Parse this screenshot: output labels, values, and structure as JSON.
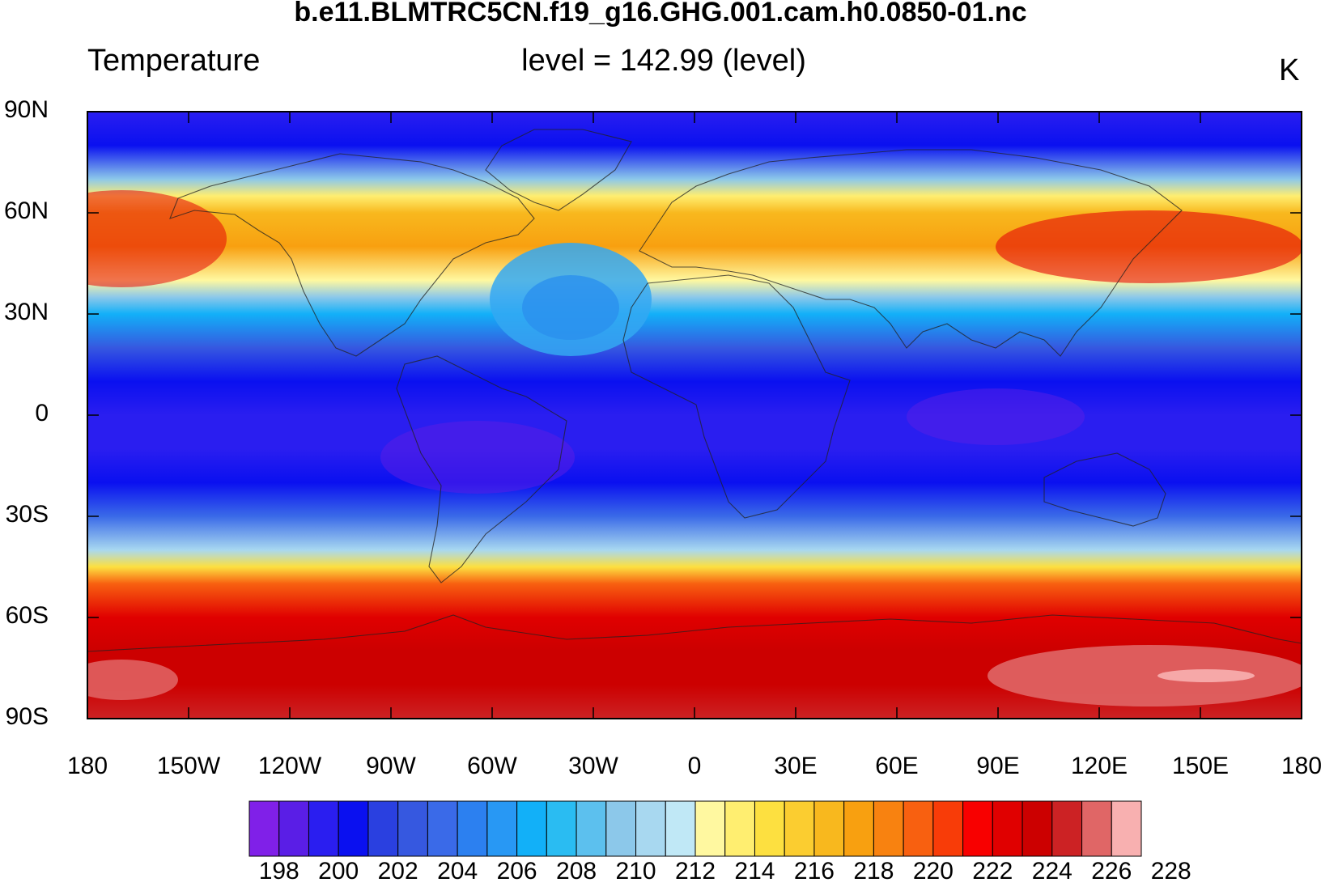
{
  "header": {
    "file_title": "b.e11.BLMTRC5CN.f19_g16.GHG.001.cam.h0.0850-01.nc",
    "variable": "Temperature",
    "level_text": "level = 142.99 (level)",
    "units": "K"
  },
  "map": {
    "projection": "cylindrical-equidistant",
    "lon_range": [
      -180,
      180
    ],
    "lat_range": [
      -90,
      90
    ],
    "lat_ticks": [
      {
        "value": 90,
        "label": "90N"
      },
      {
        "value": 60,
        "label": "60N"
      },
      {
        "value": 30,
        "label": "30N"
      },
      {
        "value": 0,
        "label": "0"
      },
      {
        "value": -30,
        "label": "30S"
      },
      {
        "value": -60,
        "label": "60S"
      },
      {
        "value": -90,
        "label": "90S"
      }
    ],
    "lon_ticks": [
      {
        "value": -180,
        "label": "180"
      },
      {
        "value": -150,
        "label": "150W"
      },
      {
        "value": -120,
        "label": "120W"
      },
      {
        "value": -90,
        "label": "90W"
      },
      {
        "value": -60,
        "label": "60W"
      },
      {
        "value": -30,
        "label": "30W"
      },
      {
        "value": 0,
        "label": "0"
      },
      {
        "value": 30,
        "label": "30E"
      },
      {
        "value": 60,
        "label": "60E"
      },
      {
        "value": 90,
        "label": "90E"
      },
      {
        "value": 120,
        "label": "120E"
      },
      {
        "value": 150,
        "label": "150E"
      },
      {
        "value": 180,
        "label": "180"
      }
    ]
  },
  "colorbar": {
    "levels": [
      198,
      200,
      202,
      204,
      206,
      208,
      210,
      212,
      214,
      216,
      218,
      220,
      222,
      224,
      226,
      228
    ],
    "labels": [
      "198",
      "200",
      "202",
      "204",
      "206",
      "208",
      "210",
      "212",
      "214",
      "216",
      "218",
      "220",
      "222",
      "224",
      "226",
      "228"
    ],
    "colors": [
      "#8020e8",
      "#5a1ee6",
      "#2a1ef0",
      "#0a10f0",
      "#2a40e0",
      "#3658e0",
      "#3a6ae8",
      "#2c80f0",
      "#2898f4",
      "#12b0f8",
      "#2abcf2",
      "#5cc0ee",
      "#8cc8ea",
      "#a8d8f0",
      "#c0e8f6",
      "#fff8a0",
      "#ffee70",
      "#fde040",
      "#fbcd30",
      "#f8b81e",
      "#f8a010",
      "#f88210",
      "#f86010",
      "#f83c08",
      "#f80000",
      "#e00000",
      "#cc0000",
      "#cc2224",
      "#e06666",
      "#f8b0b0"
    ]
  },
  "chart_data": {
    "type": "heatmap",
    "title": "b.e11.BLMTRC5CN.f19_g16.GHG.001.cam.h0.0850-01.nc",
    "variable": "Temperature",
    "level": "142.99",
    "units": "K",
    "zonal_profile": {
      "lat": [
        90,
        80,
        70,
        65,
        60,
        50,
        40,
        35,
        30,
        20,
        10,
        0,
        -10,
        -20,
        -30,
        -40,
        -45,
        -50,
        -60,
        -70,
        -80,
        -90
      ],
      "temperature": [
        200,
        201,
        210,
        215,
        218,
        219,
        214,
        210,
        207,
        203,
        201,
        200,
        200,
        201,
        204,
        211,
        216,
        221,
        224,
        225,
        225,
        226
      ]
    },
    "cbar_min": 198,
    "cbar_max": 228,
    "cbar_interval": 2
  }
}
